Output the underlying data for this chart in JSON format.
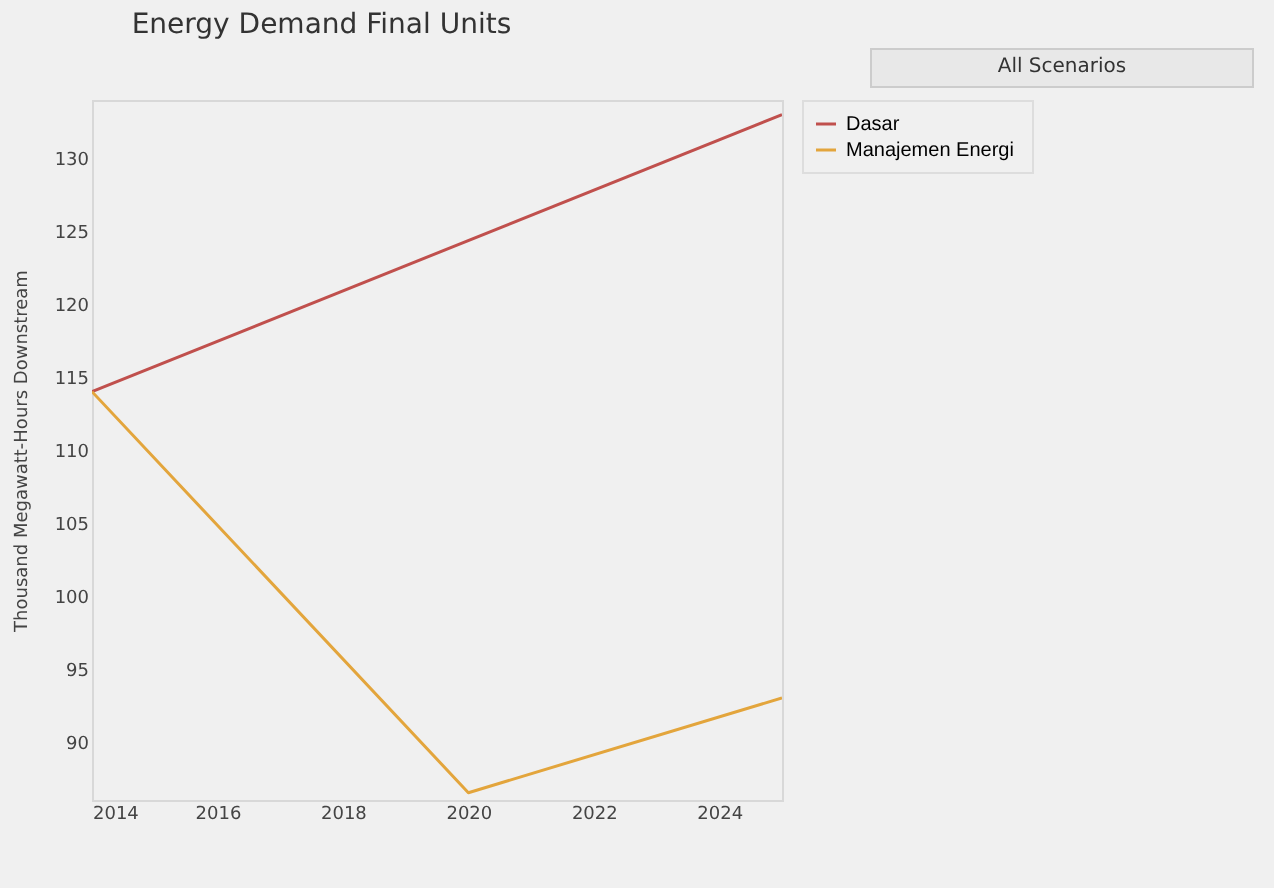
{
  "chart_data": {
    "type": "line",
    "title": "Energy Demand Final Units",
    "ylabel": "Thousand Megawatt-Hours Downstream",
    "annotations": [
      "All Scenarios"
    ],
    "x": [
      2014,
      2020,
      2025
    ],
    "series": [
      {
        "name": "Dasar",
        "color": "#c0504d",
        "x": [
          2014,
          2025
        ],
        "values": [
          114,
          133
        ]
      },
      {
        "name": "Manajemen  Energi",
        "color": "#e3a53c",
        "values": [
          114,
          86.5,
          93
        ]
      }
    ],
    "xlim": [
      2014,
      2025
    ],
    "xticks": [
      2014,
      2016,
      2018,
      2020,
      2022,
      2024
    ],
    "ylim": [
      86,
      134
    ],
    "yticks": [
      90,
      95,
      100,
      105,
      110,
      115,
      120,
      125,
      130
    ],
    "grid": false,
    "legend": "top right",
    "marker": "none",
    "line_style": "solid"
  }
}
